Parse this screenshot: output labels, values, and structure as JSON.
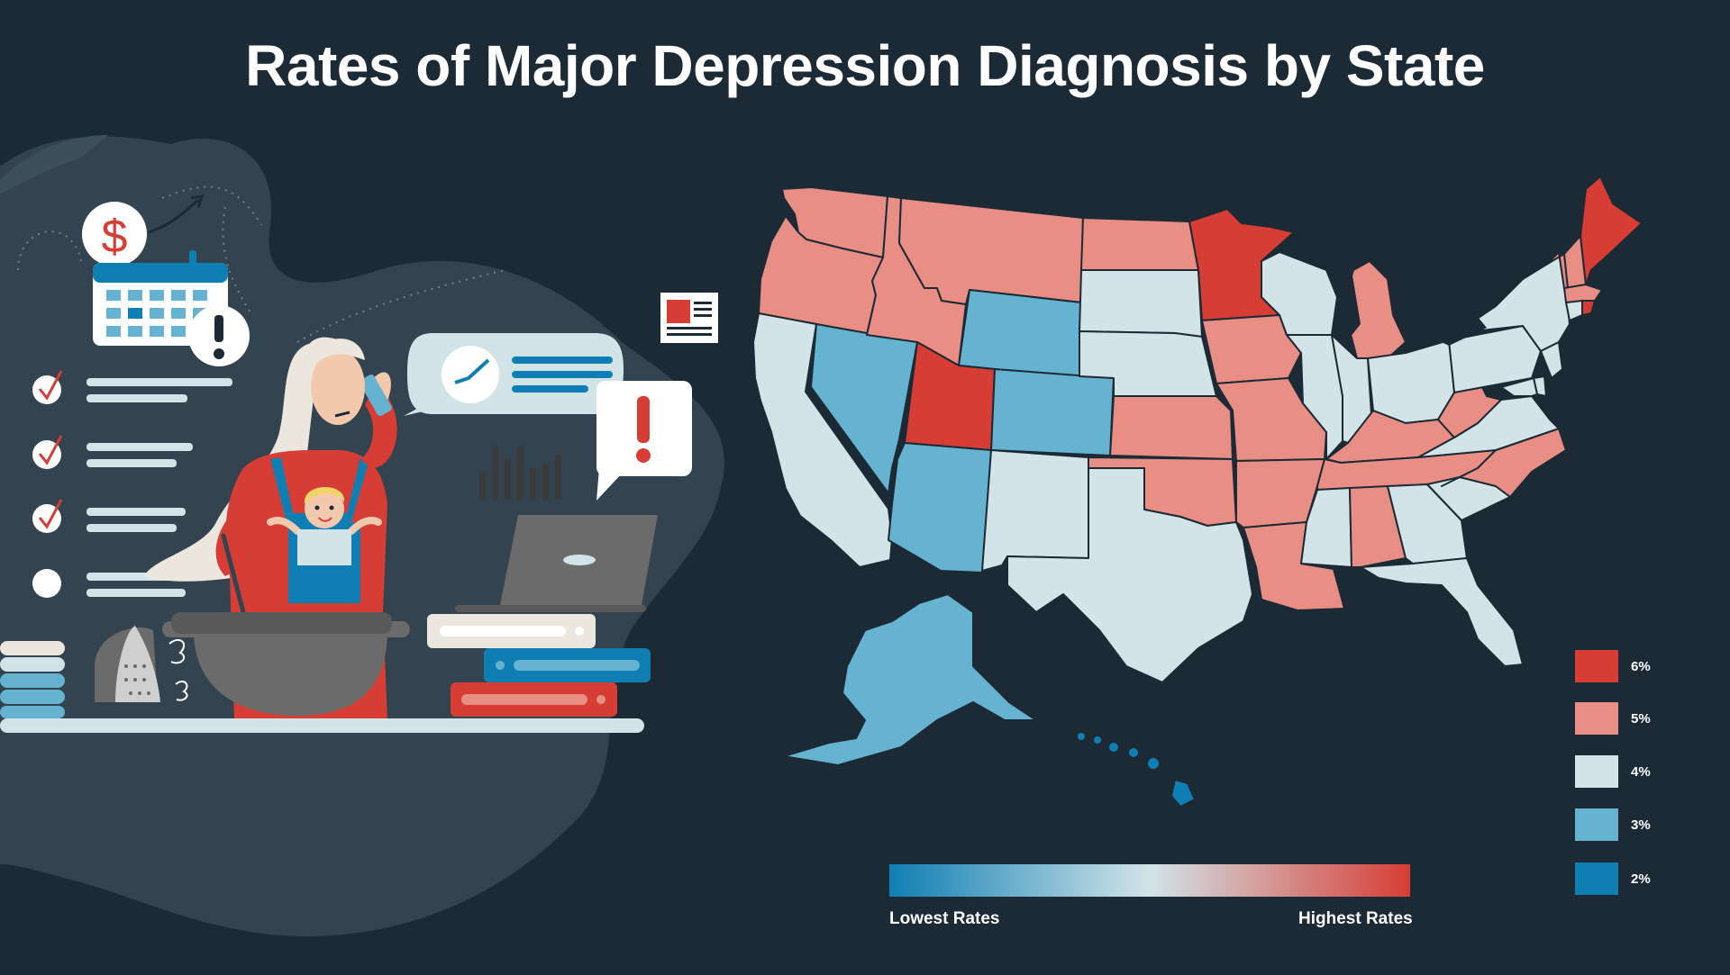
{
  "title": "Rates of Major Depression Diagnosis by State",
  "colors": {
    "background": "#1c2a36",
    "rate_6": "#d63d35",
    "rate_5": "#e88e85",
    "rate_4": "#d2e4e8",
    "rate_3": "#65b2d1",
    "rate_2": "#0f7fb3"
  },
  "legend": [
    {
      "label": "6%",
      "color": "#d63d35"
    },
    {
      "label": "5%",
      "color": "#e88e85"
    },
    {
      "label": "4%",
      "color": "#d2e4e8"
    },
    {
      "label": "3%",
      "color": "#65b2d1"
    },
    {
      "label": "2%",
      "color": "#0f7fb3"
    }
  ],
  "scale": {
    "low_label": "Lowest Rates",
    "high_label": "Highest Rates"
  },
  "map": {
    "states": [
      {
        "id": "WA",
        "rate": 5
      },
      {
        "id": "OR",
        "rate": 5
      },
      {
        "id": "CA",
        "rate": 4
      },
      {
        "id": "NV",
        "rate": 3
      },
      {
        "id": "ID",
        "rate": 5
      },
      {
        "id": "MT",
        "rate": 5
      },
      {
        "id": "WY",
        "rate": 3
      },
      {
        "id": "UT",
        "rate": 6
      },
      {
        "id": "AZ",
        "rate": 3
      },
      {
        "id": "CO",
        "rate": 3
      },
      {
        "id": "NM",
        "rate": 4
      },
      {
        "id": "ND",
        "rate": 5
      },
      {
        "id": "SD",
        "rate": 4
      },
      {
        "id": "NE",
        "rate": 4
      },
      {
        "id": "KS",
        "rate": 5
      },
      {
        "id": "OK",
        "rate": 5
      },
      {
        "id": "TX",
        "rate": 4
      },
      {
        "id": "MN",
        "rate": 6
      },
      {
        "id": "IA",
        "rate": 5
      },
      {
        "id": "MO",
        "rate": 5
      },
      {
        "id": "AR",
        "rate": 5
      },
      {
        "id": "LA",
        "rate": 5
      },
      {
        "id": "WI",
        "rate": 4
      },
      {
        "id": "IL",
        "rate": 4
      },
      {
        "id": "MI",
        "rate": 5
      },
      {
        "id": "IN",
        "rate": 4
      },
      {
        "id": "OH",
        "rate": 4
      },
      {
        "id": "KY",
        "rate": 5
      },
      {
        "id": "TN",
        "rate": 5
      },
      {
        "id": "MS",
        "rate": 4
      },
      {
        "id": "AL",
        "rate": 5
      },
      {
        "id": "GA",
        "rate": 4
      },
      {
        "id": "FL",
        "rate": 4
      },
      {
        "id": "SC",
        "rate": 4
      },
      {
        "id": "NC",
        "rate": 5
      },
      {
        "id": "VA",
        "rate": 4
      },
      {
        "id": "WV",
        "rate": 5
      },
      {
        "id": "PA",
        "rate": 4
      },
      {
        "id": "NY",
        "rate": 4
      },
      {
        "id": "VT",
        "rate": 5
      },
      {
        "id": "NH",
        "rate": 5
      },
      {
        "id": "ME",
        "rate": 6
      },
      {
        "id": "MA",
        "rate": 5
      },
      {
        "id": "CT",
        "rate": 4
      },
      {
        "id": "RI",
        "rate": 6
      },
      {
        "id": "NJ",
        "rate": 4
      },
      {
        "id": "DE",
        "rate": 4
      },
      {
        "id": "MD",
        "rate": 4
      },
      {
        "id": "AK",
        "rate": 3
      },
      {
        "id": "HI",
        "rate": 2
      }
    ]
  },
  "illustration": {
    "dollar_symbol": "$",
    "alert_symbol": "!"
  }
}
